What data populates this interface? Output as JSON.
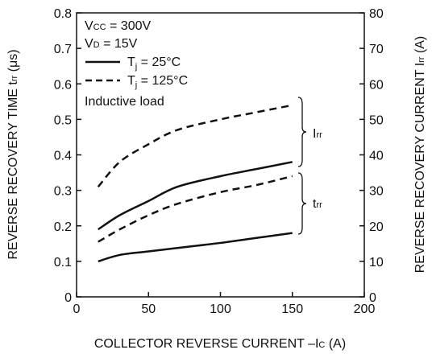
{
  "chart_data": {
    "type": "line",
    "xlabel": "COLLECTOR REVERSE CURRENT  –Ic (A)",
    "xlabel_main": "COLLECTOR REVERSE CURRENT  –I",
    "xlabel_sub": "C",
    "xlabel_tail": " (A)",
    "ylabel_left": "REVERSE RECOVERY TIME  trr (μs)",
    "ylabel_left_main": "REVERSE RECOVERY TIME  t",
    "ylabel_left_sub": "rr",
    "ylabel_left_tail": " (μs)",
    "ylabel_right": "REVERSE RECOVERY CURRENT  Irr (A)",
    "ylabel_right_main": "REVERSE RECOVERY CURRENT  I",
    "ylabel_right_sub": "rr",
    "ylabel_right_tail": " (A)",
    "xlim": [
      0,
      200
    ],
    "ylim_left": [
      0,
      0.8
    ],
    "ylim_right": [
      0,
      80
    ],
    "x_ticks": [
      "0",
      "50",
      "100",
      "150",
      "200"
    ],
    "y_left_ticks": [
      "0",
      "0.1",
      "0.2",
      "0.3",
      "0.4",
      "0.5",
      "0.6",
      "0.7",
      "0.8"
    ],
    "y_right_ticks": [
      "0",
      "10",
      "20",
      "30",
      "40",
      "50",
      "60",
      "70",
      "80"
    ],
    "grid": false,
    "legend_location": "top-left",
    "conditions": [
      {
        "main": "V",
        "sub": "CC",
        "tail": " = 300V"
      },
      {
        "main": "V",
        "sub": "D",
        "tail": " = 15V"
      }
    ],
    "legend": [
      {
        "label": "Tj = 25°C",
        "main": "T",
        "sub": "j",
        "tail": " = 25°C",
        "style": "solid"
      },
      {
        "label": "Tj = 125°C",
        "main": "T",
        "sub": "j",
        "tail": " = 125°C",
        "style": "dashed"
      }
    ],
    "note": "Inductive load",
    "brace_labels": [
      {
        "main": "I",
        "sub": "rr"
      },
      {
        "main": "t",
        "sub": "rr"
      }
    ],
    "series": [
      {
        "style": "solid",
        "axis": "right",
        "x": [
          15,
          30,
          50,
          70,
          100,
          125,
          150
        ],
        "values": [
          19,
          23,
          27,
          31,
          34,
          36,
          38
        ]
      },
      {
        "style": "dashed",
        "axis": "right",
        "x": [
          15,
          30,
          50,
          70,
          100,
          125,
          150
        ],
        "values": [
          31,
          38,
          43,
          47,
          50,
          52,
          54
        ]
      },
      {
        "style": "solid",
        "axis": "left",
        "x": [
          15,
          30,
          50,
          75,
          100,
          125,
          150
        ],
        "values": [
          0.1,
          0.118,
          0.128,
          0.14,
          0.152,
          0.166,
          0.18
        ]
      },
      {
        "style": "dashed",
        "axis": "left",
        "x": [
          15,
          30,
          50,
          70,
          100,
          125,
          150
        ],
        "values": [
          0.155,
          0.19,
          0.23,
          0.262,
          0.295,
          0.315,
          0.34
        ]
      }
    ],
    "colors": {
      "line": "#111111",
      "background": "#ffffff"
    }
  }
}
